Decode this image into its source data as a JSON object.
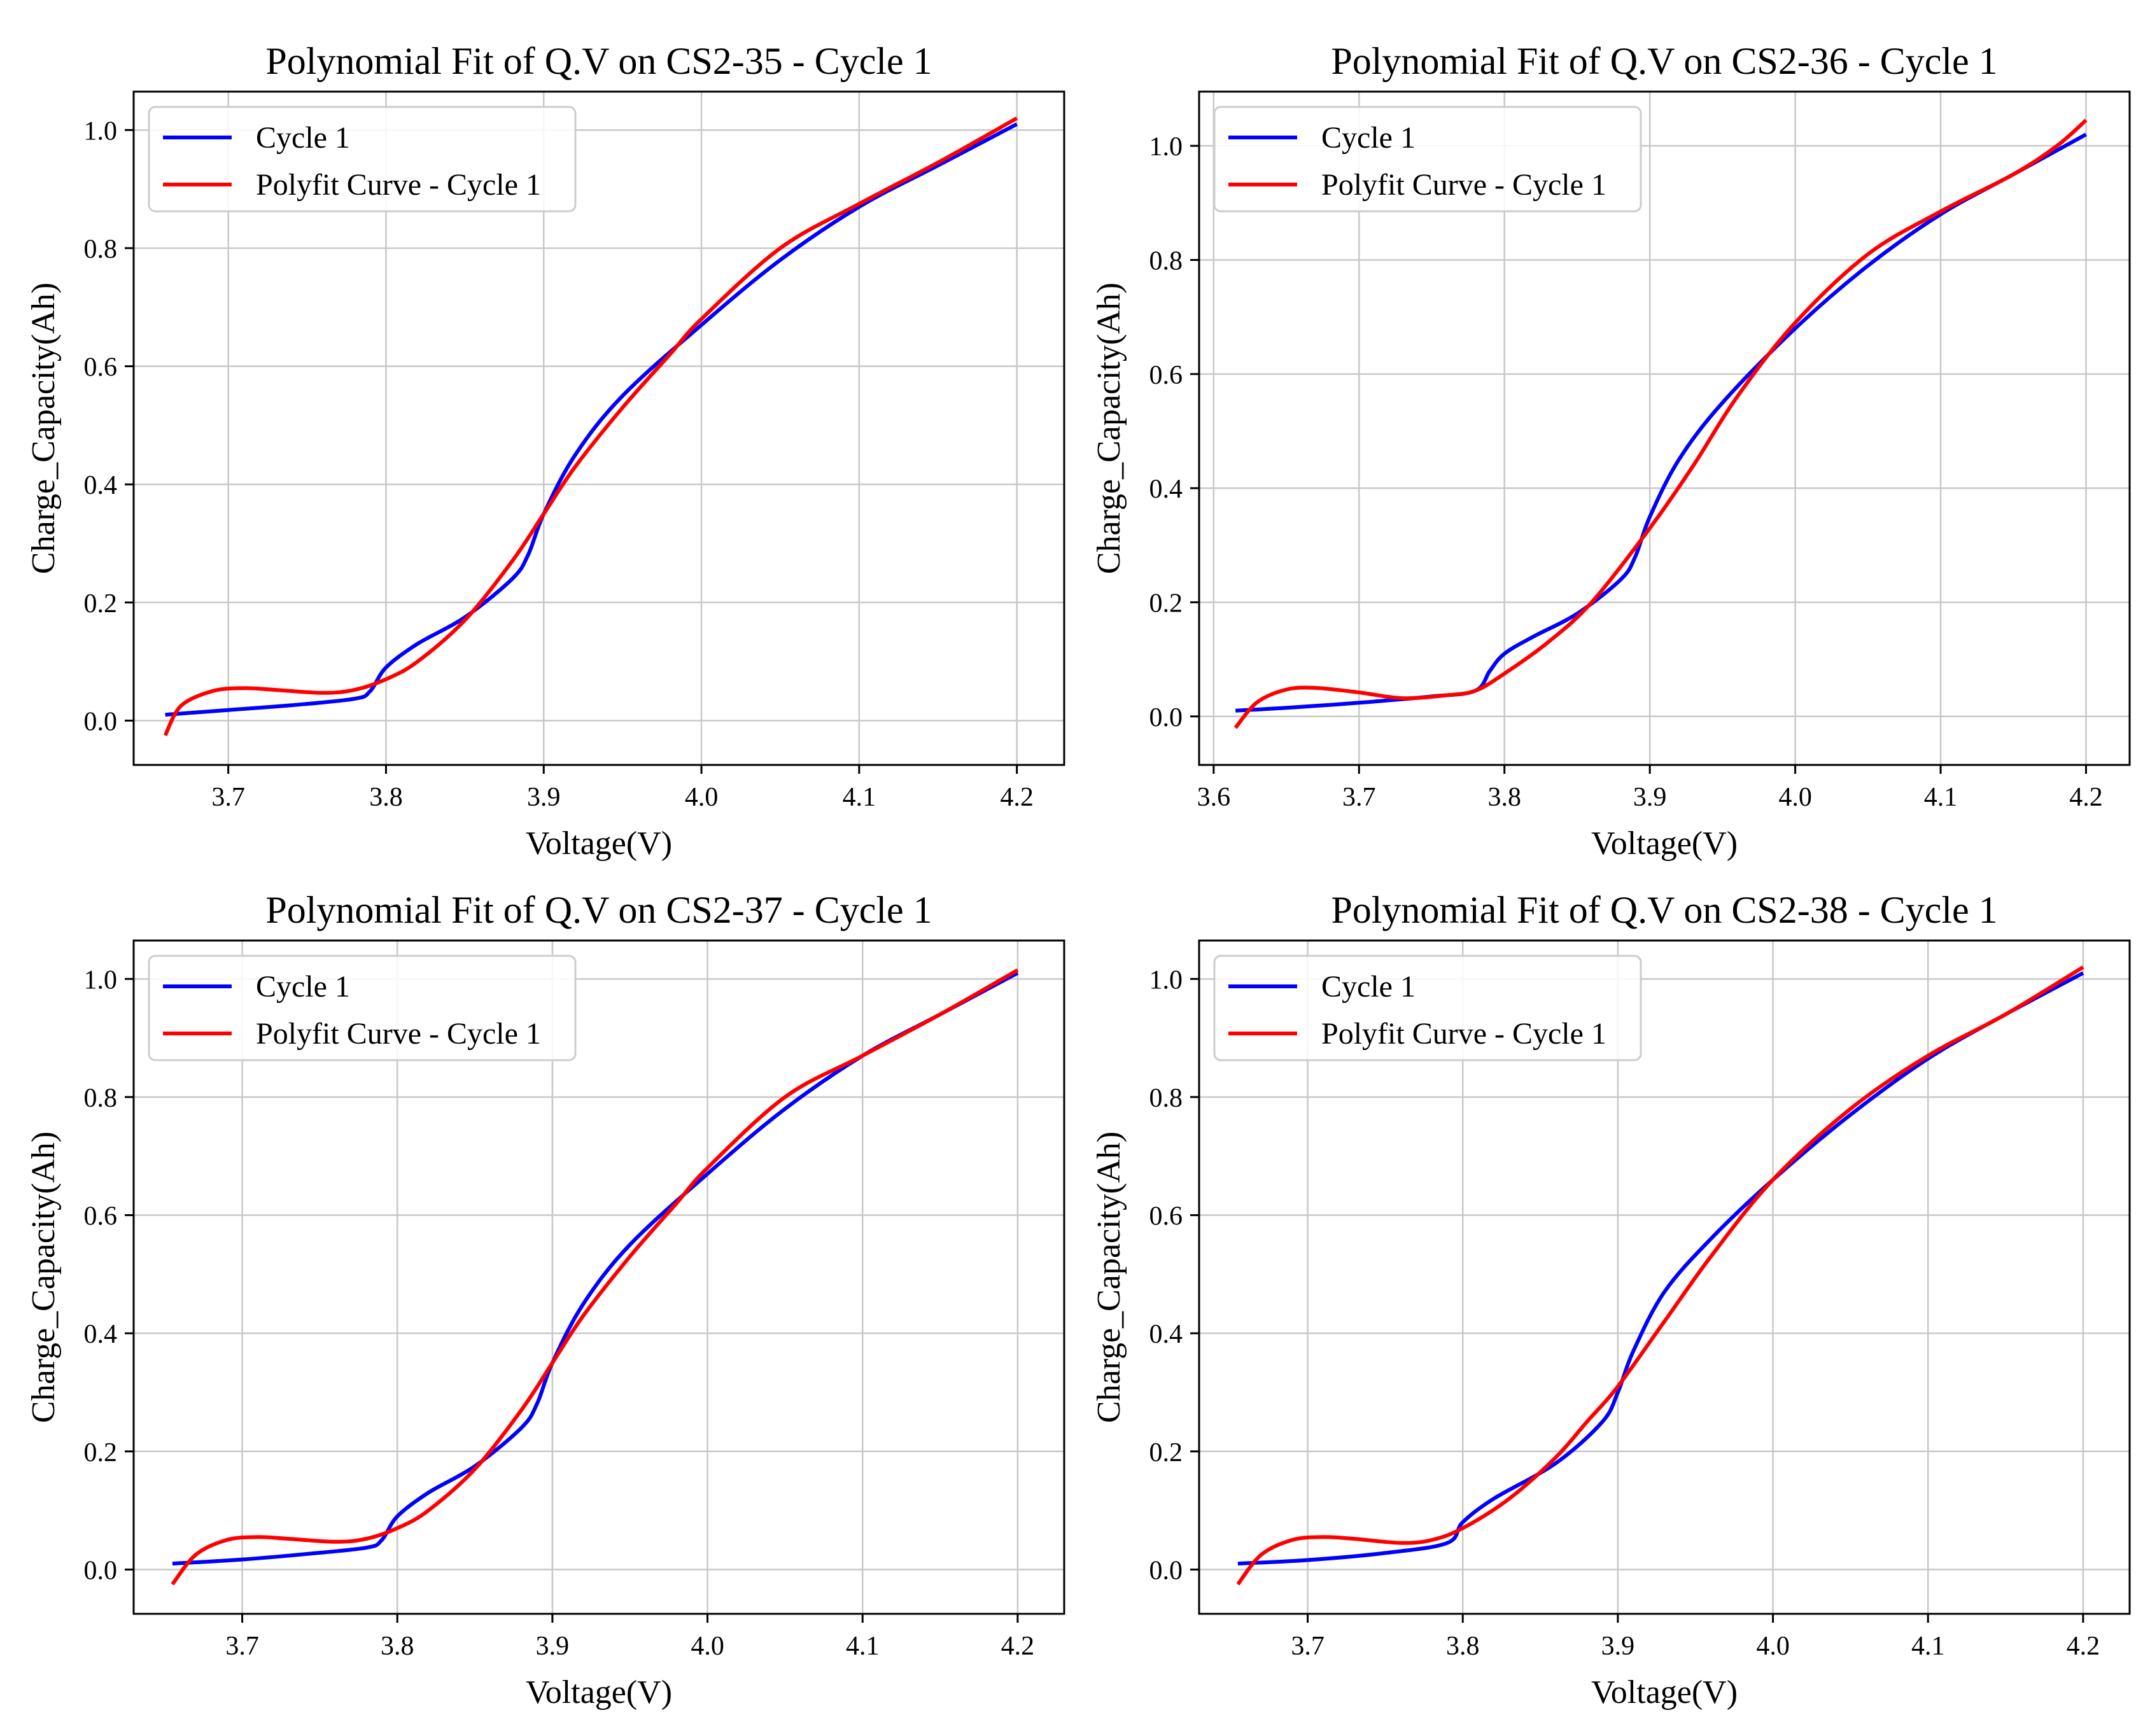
{
  "colors": {
    "measured": "#0000ff",
    "fit": "#ff0000",
    "grid": "#c8c8c8",
    "axes": "#000000",
    "legend_border": "#cccccc"
  },
  "chart_data": [
    {
      "type": "line",
      "title": "Polynomial Fit of Q.V on CS2-35 - Cycle 1",
      "xlabel": "Voltage(V)",
      "ylabel": "Charge_Capacity(Ah)",
      "xlim": [
        3.64,
        4.23
      ],
      "ylim": [
        -0.075,
        1.065
      ],
      "xticks": [
        3.7,
        3.8,
        3.9,
        4.0,
        4.1,
        4.2
      ],
      "xtick_labels": [
        "3.7",
        "3.8",
        "3.9",
        "4.0",
        "4.1",
        "4.2"
      ],
      "yticks": [
        0.0,
        0.2,
        0.4,
        0.6,
        0.8,
        1.0
      ],
      "ytick_labels": [
        "0.0",
        "0.2",
        "0.4",
        "0.6",
        "0.8",
        "1.0"
      ],
      "grid": true,
      "legend": "top-left",
      "series": [
        {
          "name": "Cycle 1",
          "color": "#0000ff",
          "x": [
            3.66,
            3.7,
            3.74,
            3.78,
            3.79,
            3.8,
            3.82,
            3.85,
            3.88,
            3.89,
            3.9,
            3.92,
            3.95,
            4.0,
            4.05,
            4.1,
            4.15,
            4.2
          ],
          "y": [
            0.01,
            0.018,
            0.026,
            0.037,
            0.05,
            0.09,
            0.13,
            0.175,
            0.24,
            0.28,
            0.35,
            0.45,
            0.55,
            0.67,
            0.78,
            0.87,
            0.94,
            1.01
          ]
        },
        {
          "name": "Polyfit Curve - Cycle 1",
          "color": "#ff0000",
          "x": [
            3.66,
            3.67,
            3.69,
            3.71,
            3.73,
            3.76,
            3.78,
            3.8,
            3.82,
            3.85,
            3.88,
            3.9,
            3.92,
            3.95,
            3.98,
            4.0,
            4.05,
            4.1,
            4.15,
            4.2
          ],
          "y": [
            -0.025,
            0.025,
            0.05,
            0.055,
            0.052,
            0.047,
            0.052,
            0.07,
            0.1,
            0.17,
            0.27,
            0.35,
            0.43,
            0.53,
            0.62,
            0.68,
            0.8,
            0.875,
            0.945,
            1.02
          ]
        }
      ]
    },
    {
      "type": "line",
      "title": "Polynomial Fit of Q.V on CS2-36 - Cycle 1",
      "xlabel": "Voltage(V)",
      "ylabel": "Charge_Capacity(Ah)",
      "xlim": [
        3.59,
        4.23
      ],
      "ylim": [
        -0.085,
        1.095
      ],
      "xticks": [
        3.6,
        3.7,
        3.8,
        3.9,
        4.0,
        4.1,
        4.2
      ],
      "xtick_labels": [
        "3.6",
        "3.7",
        "3.8",
        "3.9",
        "4.0",
        "4.1",
        "4.2"
      ],
      "yticks": [
        0.0,
        0.2,
        0.4,
        0.6,
        0.8,
        1.0
      ],
      "ytick_labels": [
        "0.0",
        "0.2",
        "0.4",
        "0.6",
        "0.8",
        "1.0"
      ],
      "grid": true,
      "legend": "top-left",
      "series": [
        {
          "name": "Cycle 1",
          "color": "#0000ff",
          "x": [
            3.615,
            3.65,
            3.7,
            3.75,
            3.78,
            3.79,
            3.8,
            3.82,
            3.85,
            3.88,
            3.89,
            3.9,
            3.92,
            3.95,
            4.0,
            4.05,
            4.1,
            4.15,
            4.2
          ],
          "y": [
            0.01,
            0.015,
            0.024,
            0.035,
            0.045,
            0.08,
            0.11,
            0.14,
            0.18,
            0.24,
            0.28,
            0.35,
            0.45,
            0.55,
            0.68,
            0.79,
            0.88,
            0.95,
            1.02
          ]
        },
        {
          "name": "Polyfit Curve - Cycle 1",
          "color": "#ff0000",
          "x": [
            3.615,
            3.63,
            3.65,
            3.67,
            3.7,
            3.73,
            3.76,
            3.78,
            3.8,
            3.83,
            3.86,
            3.9,
            3.93,
            3.96,
            4.0,
            4.05,
            4.1,
            4.15,
            4.18,
            4.2
          ],
          "y": [
            -0.02,
            0.025,
            0.047,
            0.05,
            0.042,
            0.032,
            0.037,
            0.045,
            0.075,
            0.13,
            0.2,
            0.33,
            0.44,
            0.56,
            0.69,
            0.81,
            0.885,
            0.95,
            1.0,
            1.045
          ]
        }
      ]
    },
    {
      "type": "line",
      "title": "Polynomial Fit of Q.V on CS2-37 - Cycle 1",
      "xlabel": "Voltage(V)",
      "ylabel": "Charge_Capacity(Ah)",
      "xlim": [
        3.63,
        4.23
      ],
      "ylim": [
        -0.075,
        1.065
      ],
      "xticks": [
        3.7,
        3.8,
        3.9,
        4.0,
        4.1,
        4.2
      ],
      "xtick_labels": [
        "3.7",
        "3.8",
        "3.9",
        "4.0",
        "4.1",
        "4.2"
      ],
      "yticks": [
        0.0,
        0.2,
        0.4,
        0.6,
        0.8,
        1.0
      ],
      "ytick_labels": [
        "0.0",
        "0.2",
        "0.4",
        "0.6",
        "0.8",
        "1.0"
      ],
      "grid": true,
      "legend": "top-left",
      "series": [
        {
          "name": "Cycle 1",
          "color": "#0000ff",
          "x": [
            3.655,
            3.7,
            3.74,
            3.78,
            3.79,
            3.8,
            3.82,
            3.85,
            3.88,
            3.89,
            3.9,
            3.92,
            3.95,
            4.0,
            4.05,
            4.1,
            4.15,
            4.2
          ],
          "y": [
            0.01,
            0.017,
            0.026,
            0.037,
            0.05,
            0.09,
            0.13,
            0.175,
            0.24,
            0.28,
            0.35,
            0.45,
            0.55,
            0.67,
            0.78,
            0.87,
            0.94,
            1.01
          ]
        },
        {
          "name": "Polyfit Curve - Cycle 1",
          "color": "#ff0000",
          "x": [
            3.655,
            3.67,
            3.69,
            3.71,
            3.73,
            3.76,
            3.78,
            3.8,
            3.82,
            3.85,
            3.88,
            3.9,
            3.92,
            3.95,
            3.98,
            4.0,
            4.05,
            4.1,
            4.15,
            4.2
          ],
          "y": [
            -0.025,
            0.025,
            0.05,
            0.055,
            0.052,
            0.047,
            0.052,
            0.07,
            0.1,
            0.17,
            0.27,
            0.35,
            0.43,
            0.53,
            0.62,
            0.68,
            0.8,
            0.87,
            0.94,
            1.015
          ]
        }
      ]
    },
    {
      "type": "line",
      "title": "Polynomial Fit of Q.V on CS2-38 - Cycle 1",
      "xlabel": "Voltage(V)",
      "ylabel": "Charge_Capacity(Ah)",
      "xlim": [
        3.63,
        4.23
      ],
      "ylim": [
        -0.075,
        1.065
      ],
      "xticks": [
        3.7,
        3.8,
        3.9,
        4.0,
        4.1,
        4.2
      ],
      "xtick_labels": [
        "3.7",
        "3.8",
        "3.9",
        "4.0",
        "4.1",
        "4.2"
      ],
      "yticks": [
        0.0,
        0.2,
        0.4,
        0.6,
        0.8,
        1.0
      ],
      "ytick_labels": [
        "0.0",
        "0.2",
        "0.4",
        "0.6",
        "0.8",
        "1.0"
      ],
      "grid": true,
      "legend": "top-left",
      "series": [
        {
          "name": "Cycle 1",
          "color": "#0000ff",
          "x": [
            3.655,
            3.7,
            3.75,
            3.79,
            3.8,
            3.82,
            3.86,
            3.89,
            3.9,
            3.91,
            3.93,
            3.96,
            4.0,
            4.05,
            4.1,
            4.15,
            4.2
          ],
          "y": [
            0.01,
            0.016,
            0.028,
            0.045,
            0.08,
            0.12,
            0.18,
            0.25,
            0.3,
            0.37,
            0.47,
            0.56,
            0.66,
            0.77,
            0.865,
            0.94,
            1.01
          ]
        },
        {
          "name": "Polyfit Curve - Cycle 1",
          "color": "#ff0000",
          "x": [
            3.655,
            3.67,
            3.69,
            3.71,
            3.73,
            3.76,
            3.78,
            3.8,
            3.83,
            3.86,
            3.88,
            3.9,
            3.93,
            3.96,
            4.0,
            4.05,
            4.1,
            4.15,
            4.2
          ],
          "y": [
            -0.025,
            0.025,
            0.05,
            0.055,
            0.052,
            0.045,
            0.05,
            0.07,
            0.12,
            0.19,
            0.25,
            0.31,
            0.42,
            0.53,
            0.66,
            0.78,
            0.87,
            0.94,
            1.02
          ]
        }
      ]
    }
  ]
}
